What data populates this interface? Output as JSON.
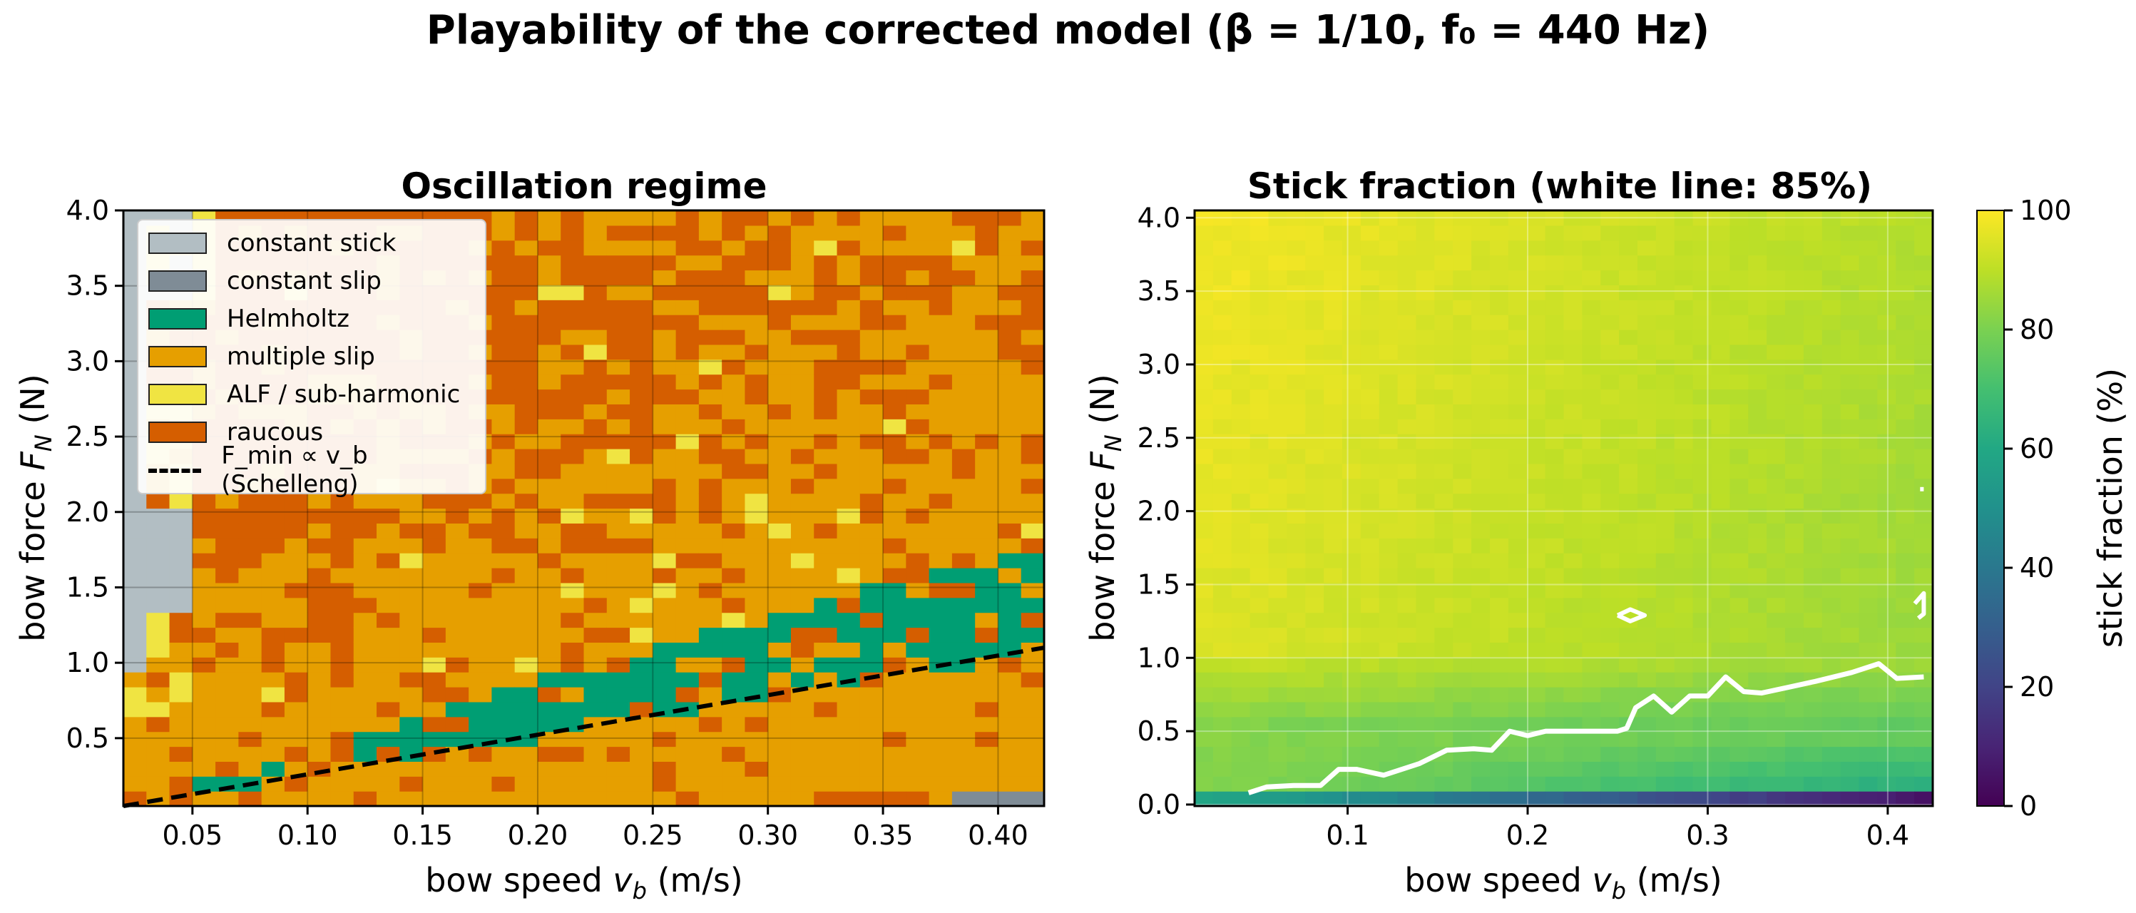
{
  "figure": {
    "suptitle": "Playability of the corrected model  (β = 1/10, f₀ = 440 Hz)"
  },
  "chart_data": [
    {
      "type": "heatmap",
      "title": "Oscillation regime",
      "xlabel": "bow speed  v_b  (m/s)",
      "ylabel": "bow force  F_N  (N)",
      "xlim": [
        0.02,
        0.42
      ],
      "ylim": [
        0.05,
        4.0
      ],
      "xticks": [
        "0.05",
        "0.10",
        "0.15",
        "0.20",
        "0.25",
        "0.30",
        "0.35",
        "0.40"
      ],
      "yticks": [
        "0.5",
        "1.0",
        "1.5",
        "2.0",
        "2.5",
        "3.0",
        "3.5",
        "4.0"
      ],
      "xtick_values": [
        0.05,
        0.1,
        0.15,
        0.2,
        0.25,
        0.3,
        0.35,
        0.4
      ],
      "ytick_values": [
        0.5,
        1.0,
        1.5,
        2.0,
        2.5,
        3.0,
        3.5,
        4.0
      ],
      "grid": true,
      "grid_cols": 40,
      "grid_rows": 40,
      "regimes": [
        {
          "name": "constant stick",
          "color": "#b2bec3"
        },
        {
          "name": "constant slip",
          "color": "#7f8c96"
        },
        {
          "name": "Helmholtz",
          "color": "#009e73"
        },
        {
          "name": "multiple slip",
          "color": "#e69f00"
        },
        {
          "name": "ALF / sub-harmonic",
          "color": "#f0e442"
        },
        {
          "name": "raucous",
          "color": "#d55e00"
        }
      ],
      "schelleng_line": {
        "label": "F_min ∝ v_b (Schelleng)",
        "x": [
          0.02,
          0.42
        ],
        "y": [
          0.05,
          1.1
        ]
      },
      "legend_position": "upper left"
    },
    {
      "type": "heatmap",
      "title": "Stick fraction  (white line: 85%)",
      "xlabel": "bow speed  v_b  (m/s)",
      "ylabel": "bow force  F_N  (N)",
      "xlim": [
        0.015,
        0.425
      ],
      "ylim": [
        -0.01,
        4.05
      ],
      "xticks": [
        "0.1",
        "0.2",
        "0.3",
        "0.4"
      ],
      "yticks": [
        "0.0",
        "0.5",
        "1.0",
        "1.5",
        "2.0",
        "2.5",
        "3.0",
        "3.5",
        "4.0"
      ],
      "xtick_values": [
        0.1,
        0.2,
        0.3,
        0.4
      ],
      "ytick_values": [
        0.0,
        0.5,
        1.0,
        1.5,
        2.0,
        2.5,
        3.0,
        3.5,
        4.0
      ],
      "grid": true,
      "grid_cols": 40,
      "grid_rows": 40,
      "colormap": "viridis",
      "colorbar": {
        "label": "stick fraction  (%)",
        "range": [
          0,
          100
        ],
        "ticks": [
          "0",
          "20",
          "40",
          "60",
          "80",
          "100"
        ],
        "tick_values": [
          0,
          20,
          40,
          60,
          80,
          100
        ]
      },
      "contour_level": 85,
      "contour_85": {
        "x": [
          0.045,
          0.055,
          0.07,
          0.085,
          0.095,
          0.105,
          0.12,
          0.14,
          0.155,
          0.17,
          0.18,
          0.19,
          0.2,
          0.21,
          0.22,
          0.235,
          0.25,
          0.255,
          0.26,
          0.27,
          0.28,
          0.29,
          0.3,
          0.31,
          0.32,
          0.33,
          0.345,
          0.36,
          0.38,
          0.395,
          0.405,
          0.42
        ],
        "y": [
          0.08,
          0.12,
          0.13,
          0.13,
          0.24,
          0.24,
          0.2,
          0.28,
          0.37,
          0.38,
          0.37,
          0.5,
          0.47,
          0.5,
          0.5,
          0.5,
          0.5,
          0.52,
          0.66,
          0.74,
          0.63,
          0.74,
          0.74,
          0.87,
          0.77,
          0.76,
          0.8,
          0.84,
          0.9,
          0.96,
          0.86,
          0.87
        ]
      },
      "contour_islands": [
        {
          "x": [
            0.25,
            0.257,
            0.265,
            0.257,
            0.25
          ],
          "y": [
            1.29,
            1.33,
            1.29,
            1.25,
            1.29
          ]
        },
        {
          "x": [
            0.417,
            0.42,
            0.42,
            0.415
          ],
          "y": [
            1.27,
            1.3,
            1.44,
            1.37
          ]
        },
        {
          "x": [
            0.418,
            0.42
          ],
          "y": [
            2.15,
            2.15
          ]
        }
      ]
    }
  ]
}
